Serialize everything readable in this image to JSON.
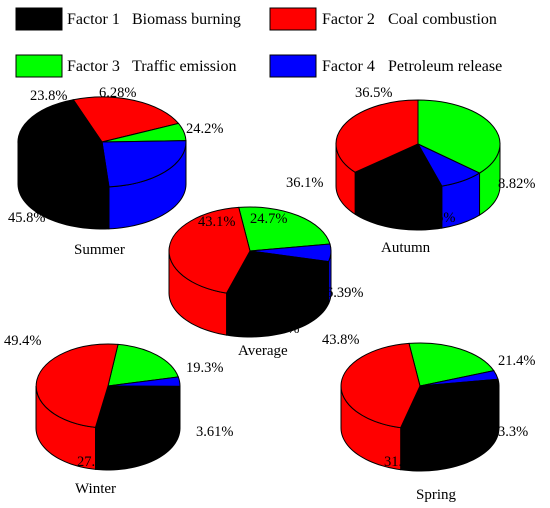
{
  "legend": [
    {
      "factor": "Factor 1",
      "source": "Biomass burning",
      "color": "#000000"
    },
    {
      "factor": "Factor 2",
      "source": "Coal combustion",
      "color": "#ff0000"
    },
    {
      "factor": "Factor 3",
      "source": "Traffic emission",
      "color": "#00ff00"
    },
    {
      "factor": "Factor 4",
      "source": "Petroleum release",
      "color": "#0000ff"
    }
  ],
  "chart_data": [
    {
      "type": "pie",
      "label": "Summer",
      "order": [
        "Factor 2",
        "Factor 3",
        "Factor 4",
        "Factor 1"
      ],
      "values": [
        23.8,
        6.28,
        24.2,
        45.8
      ],
      "value_labels": [
        "23.8%",
        "6.28%",
        "24.2%",
        "45.8%"
      ]
    },
    {
      "type": "pie",
      "label": "Autumn",
      "order": [
        "Factor 3",
        "Factor 4",
        "Factor 1",
        "Factor 2"
      ],
      "values": [
        36.5,
        8.82,
        18.6,
        36.1
      ],
      "value_labels": [
        "36.5%",
        "8.82%",
        "18.6%",
        "36.1%"
      ]
    },
    {
      "type": "pie",
      "label": "Average",
      "order": [
        "Factor 3",
        "Factor 4",
        "Factor 1",
        "Factor 2"
      ],
      "values": [
        24.7,
        6.39,
        25.8,
        43.1
      ],
      "value_labels": [
        "24.7%",
        "6.39%",
        "25.8%",
        "43.1%"
      ]
    },
    {
      "type": "pie",
      "label": "Winter",
      "order": [
        "Factor 3",
        "Factor 4",
        "Factor 1",
        "Factor 2"
      ],
      "values": [
        19.3,
        3.61,
        27.6,
        49.4
      ],
      "value_labels": [
        "19.3%",
        "3.61%",
        "27.6%",
        "49.4%"
      ]
    },
    {
      "type": "pie",
      "label": "Spring",
      "order": [
        "Factor 3",
        "Factor 4",
        "Factor 1",
        "Factor 2"
      ],
      "values": [
        21.4,
        3.3,
        31.4,
        43.8
      ],
      "value_labels": [
        "21.4%",
        "3.3%",
        "31.4%",
        "43.8%"
      ]
    }
  ]
}
